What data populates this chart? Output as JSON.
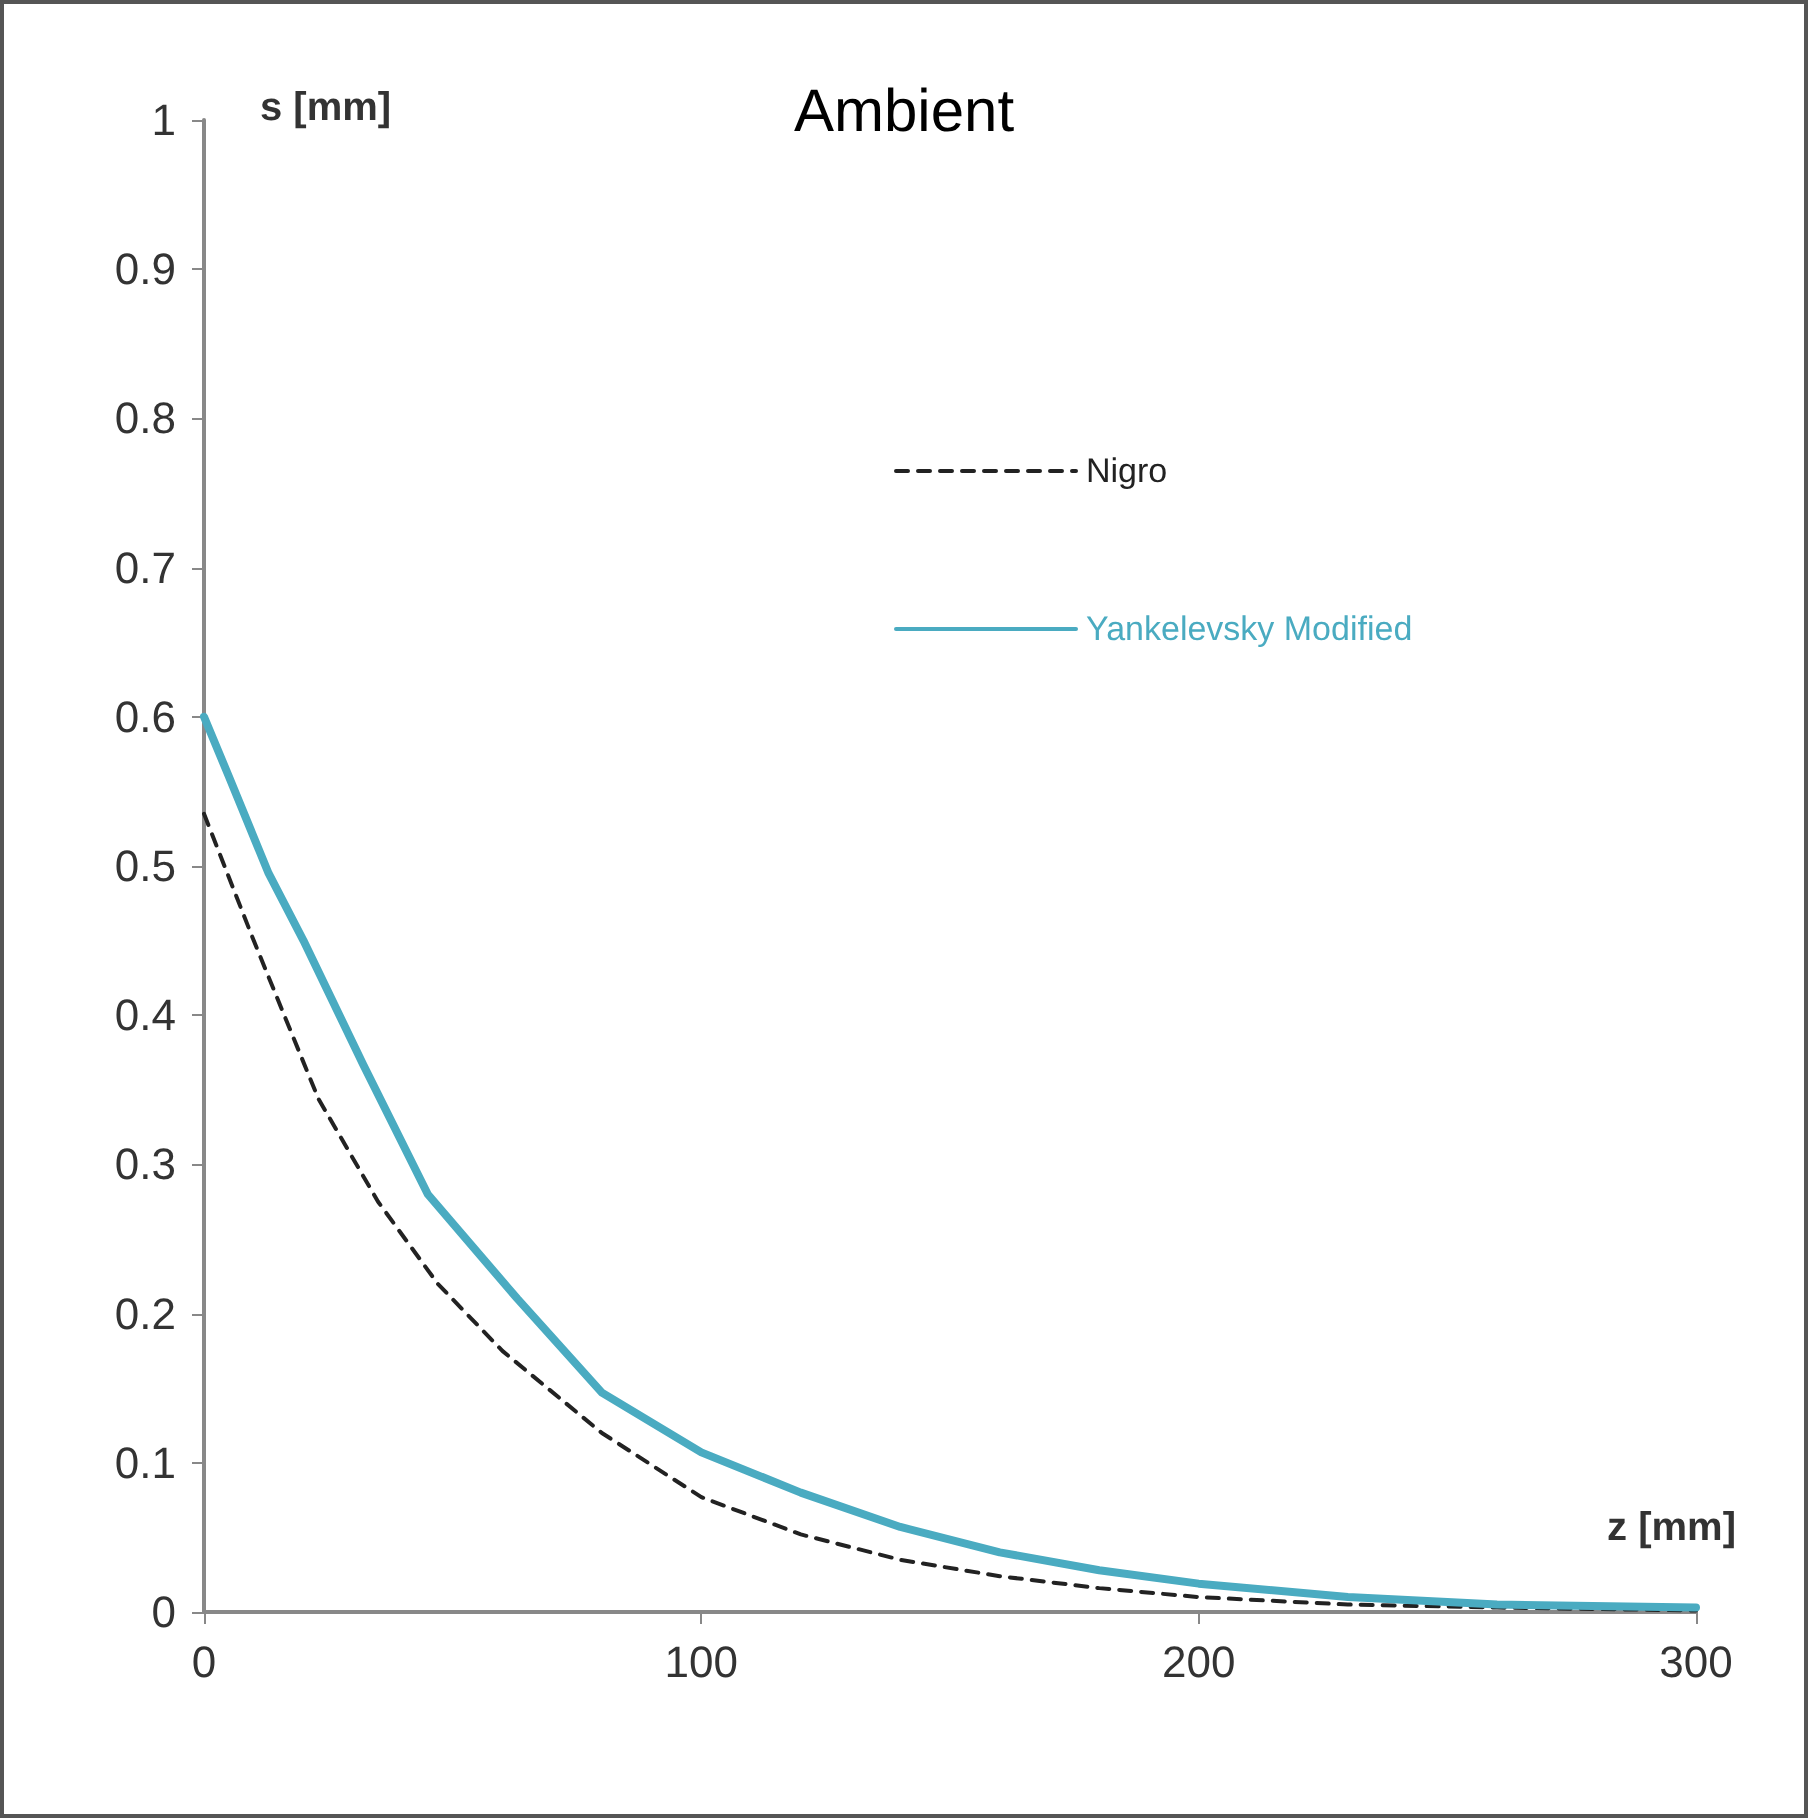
{
  "chart_data": {
    "type": "line",
    "title": "Ambient",
    "xlabel": "z [mm]",
    "ylabel": "s [mm]",
    "xlim": [
      0,
      300
    ],
    "xticks": [
      0,
      100,
      200,
      300
    ],
    "ylim": [
      0,
      1
    ],
    "yticks": [
      0,
      0.1,
      0.2,
      0.3,
      0.4,
      0.5,
      0.6,
      0.7,
      0.8,
      0.9,
      1
    ],
    "grid": false,
    "legend": "top right",
    "marker": "none",
    "series": [
      {
        "name": "Nigro",
        "color": "#222222",
        "line_style": "dashed",
        "x": [
          0,
          10,
          23,
          35,
          47,
          60,
          80,
          100,
          120,
          140,
          160,
          180,
          200,
          230,
          260,
          300
        ],
        "values": [
          0.535,
          0.45,
          0.344,
          0.275,
          0.22,
          0.175,
          0.12,
          0.077,
          0.052,
          0.035,
          0.024,
          0.016,
          0.01,
          0.005,
          0.003,
          0.001
        ]
      },
      {
        "name": "Yankelevsky Modified",
        "color": "#4aabc1",
        "line_style": "solid",
        "x": [
          0,
          5,
          13,
          20,
          32,
          45,
          63,
          80,
          100,
          120,
          140,
          160,
          180,
          200,
          230,
          260,
          300
        ],
        "values": [
          0.6,
          0.56,
          0.495,
          0.45,
          0.367,
          0.28,
          0.21,
          0.147,
          0.107,
          0.08,
          0.057,
          0.04,
          0.028,
          0.019,
          0.01,
          0.005,
          0.003
        ]
      }
    ]
  }
}
